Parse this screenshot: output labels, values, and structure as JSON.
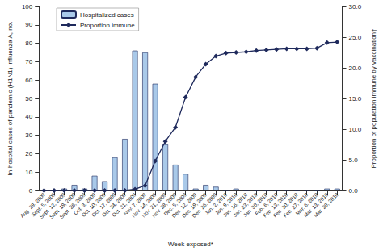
{
  "chart_data": {
    "type": "bar",
    "x_label": "Week exposed*",
    "y_label": "In-hospital cases of pandemic (H1N1) influenza A, no.",
    "y2_label": "Proportion of population immune by vaccination†",
    "categories": [
      "Aug. 29, 2009",
      "Sept. 5, 2009",
      "Sept. 12, 2009",
      "Sept. 19, 2009",
      "Sept. 26, 2009",
      "Oct. 3, 2009",
      "Oct. 10, 2009",
      "Oct. 17, 2009",
      "Oct. 24, 2009",
      "Oct. 31, 2009",
      "Nov. 7, 2009",
      "Nov. 14, 2009",
      "Nov. 21, 2009",
      "Nov. 28, 2009",
      "Dec. 5, 2009",
      "Dec. 12, 2009",
      "Dec. 19, 2009",
      "Dec. 26, 2009",
      "Jan. 2, 2010",
      "Jan. 9, 2010",
      "Jan. 16, 2010",
      "Jan. 23, 2010",
      "Jan. 30, 2010",
      "Feb. 6, 2010",
      "Feb. 13, 2010",
      "Feb. 20, 2010",
      "Feb. 27, 2010",
      "Mar. 6, 2010",
      "Mar. 13, 2010",
      "Mar. 20, 2010"
    ],
    "series": [
      {
        "name": "Hospitalized cases",
        "type": "bar",
        "color": "#a9c9e9",
        "values": [
          0,
          0,
          1,
          3,
          1,
          8,
          5,
          18,
          28,
          76,
          75,
          58,
          25,
          14,
          9,
          1,
          3,
          2,
          0,
          1,
          0,
          0,
          0,
          0,
          0,
          0,
          0,
          0,
          1,
          1
        ]
      },
      {
        "name": "Proportion immune",
        "type": "line",
        "color": "#1f2a5c",
        "marker": "diamond",
        "axis": "y2",
        "values": [
          0,
          0,
          0,
          0,
          0,
          0,
          0,
          0,
          0,
          0.2,
          0.8,
          4.8,
          8,
          10.3,
          15.2,
          18.5,
          20.6,
          21.9,
          22.4,
          22.5,
          22.6,
          22.8,
          22.9,
          23.0,
          23.1,
          23.1,
          23.1,
          23.2,
          24.1,
          24.2
        ]
      }
    ],
    "ylim": [
      0,
      100
    ],
    "yticks": [
      0,
      10,
      20,
      30,
      40,
      50,
      60,
      70,
      80,
      90,
      100
    ],
    "y2lim": [
      0,
      30
    ],
    "y2ticks": [
      {
        "value": 0,
        "label": "0.0"
      },
      {
        "value": 5,
        "label": "5.0"
      },
      {
        "value": 10,
        "label": "10.0"
      },
      {
        "value": 15,
        "label": "15.0"
      },
      {
        "value": 20,
        "label": "20.0"
      },
      {
        "value": 25,
        "label": "25.0"
      },
      {
        "value": 30,
        "label": "30.0"
      }
    ],
    "legend": "upper left",
    "grid": false
  }
}
